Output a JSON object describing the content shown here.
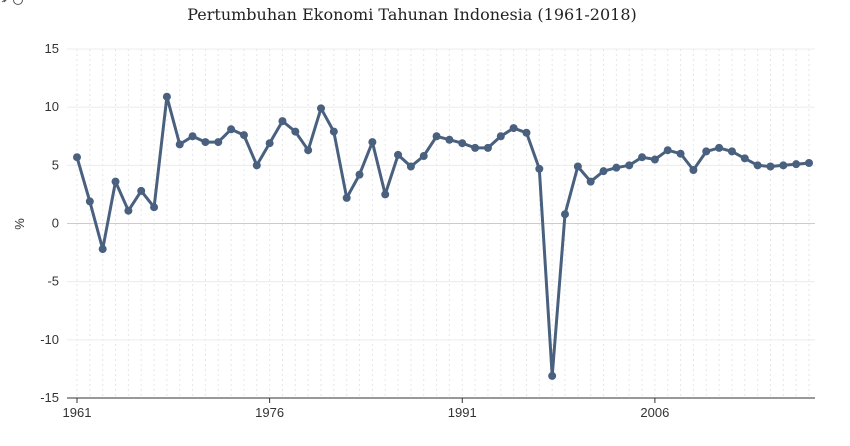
{
  "chart_data": {
    "type": "line",
    "title": "Pertumbuhan Ekonomi Tahunan Indonesia (1961-2018)",
    "xlabel": "",
    "ylabel": "%",
    "xlim": [
      1961,
      2018
    ],
    "ylim": [
      -15,
      15
    ],
    "yticks": [
      -15,
      -10,
      -5,
      0,
      5,
      10,
      15
    ],
    "xticks": [
      1961,
      1976,
      1991,
      2006
    ],
    "grid": true,
    "line_color": "#4a607f",
    "series": [
      {
        "x": [
          1961,
          1962,
          1963,
          1964,
          1965,
          1966,
          1967,
          1968,
          1969,
          1970,
          1971,
          1972,
          1973,
          1974,
          1975,
          1976,
          1977,
          1978,
          1979,
          1980,
          1981,
          1982,
          1983,
          1984,
          1985,
          1986,
          1987,
          1988,
          1989,
          1990,
          1991,
          1992,
          1993,
          1994,
          1995,
          1996,
          1997,
          1998,
          1999,
          2000,
          2001,
          2002,
          2003,
          2004,
          2005,
          2006,
          2007,
          2008,
          2009,
          2010,
          2011,
          2012,
          2013,
          2014,
          2015,
          2016,
          2017,
          2018
        ],
        "values": [
          5.7,
          1.9,
          -2.2,
          3.6,
          1.1,
          2.8,
          1.4,
          10.9,
          6.8,
          7.5,
          7.0,
          7.0,
          8.1,
          7.6,
          5.0,
          6.9,
          8.8,
          7.9,
          6.3,
          9.9,
          7.9,
          2.2,
          4.2,
          7.0,
          2.5,
          5.9,
          4.9,
          5.8,
          7.5,
          7.2,
          6.9,
          6.5,
          6.5,
          7.5,
          8.2,
          7.8,
          4.7,
          -13.1,
          0.8,
          4.9,
          3.6,
          4.5,
          4.8,
          5.0,
          5.7,
          5.5,
          6.3,
          6.0,
          4.6,
          6.2,
          6.5,
          6.2,
          5.6,
          5.0,
          4.9,
          5.0,
          5.1,
          5.2
        ]
      }
    ]
  }
}
